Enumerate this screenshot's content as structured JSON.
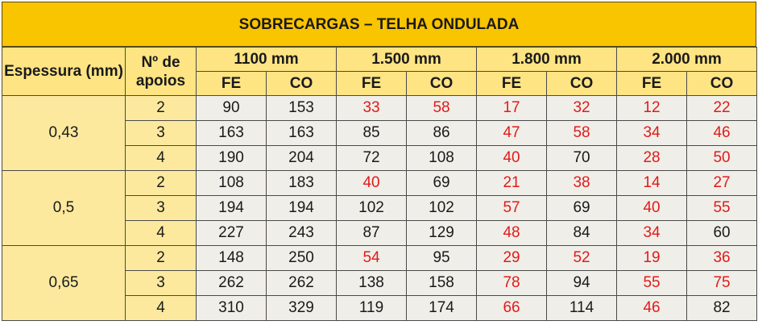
{
  "title": "SOBRECARGAS – TELHA ONDULADA",
  "header": {
    "espessura": "Espessura (mm)",
    "apoios": "Nº de apoios",
    "spans": [
      "1100 mm",
      "1.500 mm",
      "1.800 mm",
      "2.000 mm"
    ],
    "sub": [
      "FE",
      "CO",
      "FE",
      "CO",
      "FE",
      "CO",
      "FE",
      "CO"
    ]
  },
  "colors": {
    "title_bg": "#f9c400",
    "header_bg": "#ffe483",
    "key_bg": "#fde99e",
    "cell_bg": "#f0eee8",
    "red": "#e01b1b"
  },
  "groups": [
    {
      "espessura": "0,43",
      "rows": [
        {
          "apoios": "2",
          "values": [
            "90",
            "153",
            "33",
            "58",
            "17",
            "32",
            "12",
            "22"
          ],
          "red": [
            false,
            false,
            true,
            true,
            true,
            true,
            true,
            true
          ]
        },
        {
          "apoios": "3",
          "values": [
            "163",
            "163",
            "85",
            "86",
            "47",
            "58",
            "34",
            "46"
          ],
          "red": [
            false,
            false,
            false,
            false,
            true,
            true,
            true,
            true
          ]
        },
        {
          "apoios": "4",
          "values": [
            "190",
            "204",
            "72",
            "108",
            "40",
            "70",
            "28",
            "50"
          ],
          "red": [
            false,
            false,
            false,
            false,
            true,
            false,
            true,
            true
          ]
        }
      ]
    },
    {
      "espessura": "0,5",
      "rows": [
        {
          "apoios": "2",
          "values": [
            "108",
            "183",
            "40",
            "69",
            "21",
            "38",
            "14",
            "27"
          ],
          "red": [
            false,
            false,
            true,
            false,
            true,
            true,
            true,
            true
          ]
        },
        {
          "apoios": "3",
          "values": [
            "194",
            "194",
            "102",
            "102",
            "57",
            "69",
            "40",
            "55"
          ],
          "red": [
            false,
            false,
            false,
            false,
            true,
            false,
            true,
            true
          ]
        },
        {
          "apoios": "4",
          "values": [
            "227",
            "243",
            "87",
            "129",
            "48",
            "84",
            "34",
            "60"
          ],
          "red": [
            false,
            false,
            false,
            false,
            true,
            false,
            true,
            false
          ]
        }
      ]
    },
    {
      "espessura": "0,65",
      "rows": [
        {
          "apoios": "2",
          "values": [
            "148",
            "250",
            "54",
            "95",
            "29",
            "52",
            "19",
            "36"
          ],
          "red": [
            false,
            false,
            true,
            false,
            true,
            true,
            true,
            true
          ]
        },
        {
          "apoios": "3",
          "values": [
            "262",
            "262",
            "138",
            "158",
            "78",
            "94",
            "55",
            "75"
          ],
          "red": [
            false,
            false,
            false,
            false,
            true,
            false,
            true,
            true
          ]
        },
        {
          "apoios": "4",
          "values": [
            "310",
            "329",
            "119",
            "174",
            "66",
            "114",
            "46",
            "82"
          ],
          "red": [
            false,
            false,
            false,
            false,
            true,
            false,
            true,
            false
          ]
        }
      ]
    }
  ]
}
